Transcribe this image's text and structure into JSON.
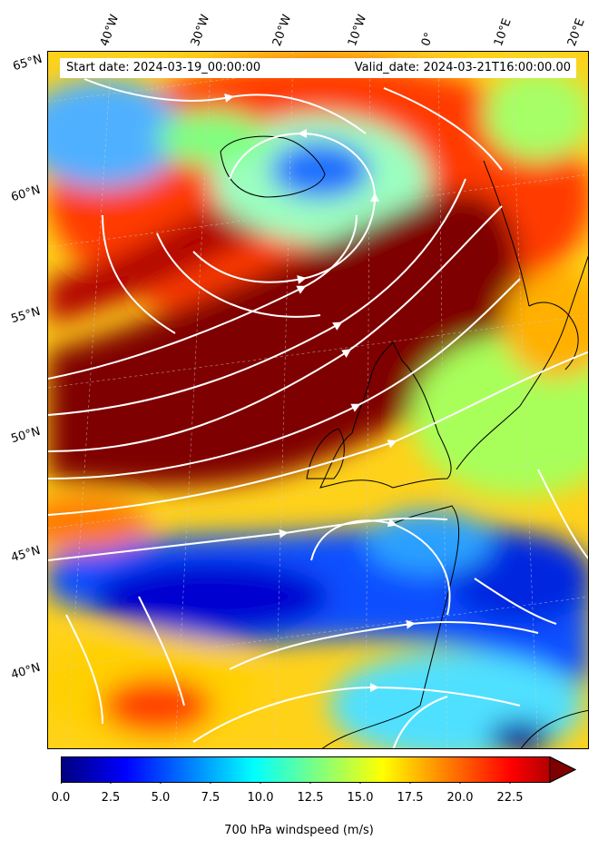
{
  "header": {
    "start_date": "Start date: 2024-03-19_00:00:00",
    "valid_date": "Valid_date: 2024-03-21T16:00:00.00"
  },
  "lon_labels": [
    "40°W",
    "30°W",
    "20°W",
    "10°W",
    "0°",
    "10°E",
    "20°E"
  ],
  "lat_labels": [
    "65°N",
    "60°N",
    "55°N",
    "50°N",
    "45°N",
    "40°N"
  ],
  "colorbar": {
    "label": "700 hPa windspeed (m/s)",
    "ticks": [
      "0.0",
      "2.5",
      "5.0",
      "7.5",
      "10.0",
      "12.5",
      "15.0",
      "17.5",
      "20.0",
      "22.5"
    ],
    "min": 0,
    "max": 25,
    "extend": "max",
    "colors": [
      "#00007f",
      "#0000ff",
      "#007fff",
      "#00ffff",
      "#7fff7f",
      "#ffff00",
      "#ff7f00",
      "#ff0000",
      "#7f0000"
    ]
  },
  "map": {
    "variable": "700 hPa windspeed",
    "overlay": "streamlines",
    "streamline_color": "#ffffff",
    "coastline_color": "#000000"
  }
}
